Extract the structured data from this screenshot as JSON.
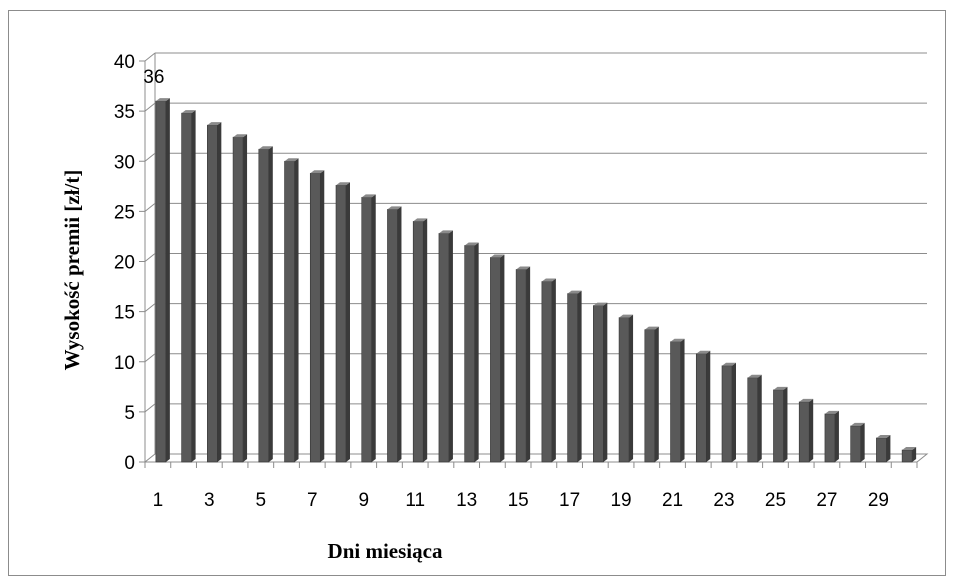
{
  "chart_data": {
    "type": "bar",
    "categories": [
      1,
      2,
      3,
      4,
      5,
      6,
      7,
      8,
      9,
      10,
      11,
      12,
      13,
      14,
      15,
      16,
      17,
      18,
      19,
      20,
      21,
      22,
      23,
      24,
      25,
      26,
      27,
      28,
      29,
      30
    ],
    "values": [
      36,
      34.8,
      33.6,
      32.4,
      31.2,
      30,
      28.8,
      27.6,
      26.4,
      25.2,
      24,
      22.8,
      21.6,
      20.4,
      19.2,
      18,
      16.8,
      15.6,
      14.4,
      13.2,
      12,
      10.8,
      9.6,
      8.4,
      7.2,
      6,
      4.8,
      3.6,
      2.4,
      1.2
    ],
    "x_tick_labels": [
      "1",
      "3",
      "5",
      "7",
      "9",
      "11",
      "13",
      "15",
      "17",
      "19",
      "21",
      "23",
      "25",
      "27",
      "29"
    ],
    "y_ticks": [
      0,
      5,
      10,
      15,
      20,
      25,
      30,
      35,
      40
    ],
    "ylim": [
      0,
      40
    ],
    "xlabel": "Dni miesiąca",
    "ylabel": "Wysokość premii [zł/t]",
    "data_labels": [
      {
        "index": 0,
        "text": "36"
      }
    ],
    "grid": "horizontal",
    "style": "3d-bar",
    "bar_color": "#595959"
  }
}
